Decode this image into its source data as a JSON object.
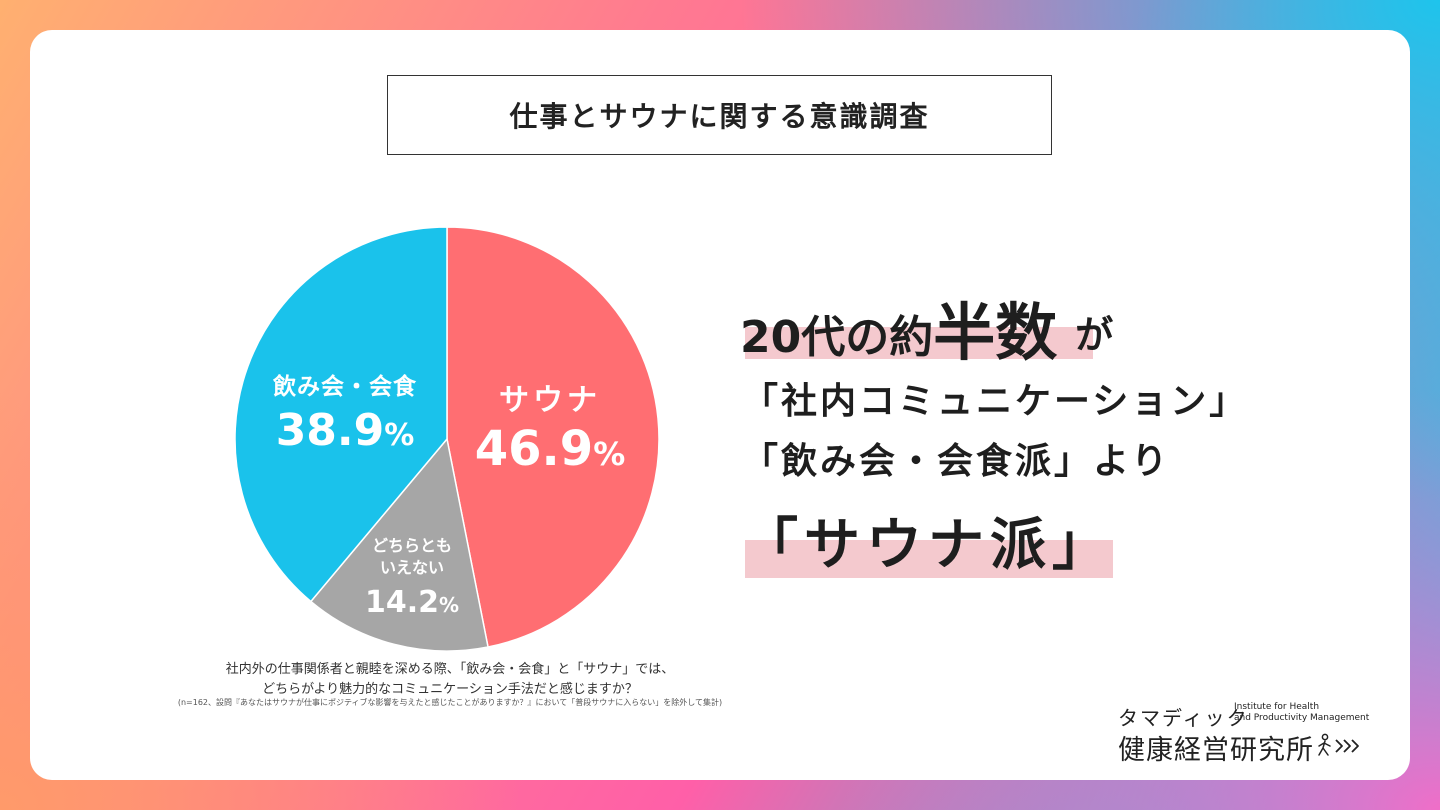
{
  "title": "仕事とサウナに関する意識調査",
  "chart_data": {
    "type": "pie",
    "slices": [
      {
        "label": "サウナ",
        "value": 46.9,
        "color": "#ff6e72"
      },
      {
        "label": "どちらとも\nいえない",
        "value": 14.2,
        "color": "#a6a6a6"
      },
      {
        "label": "飲み会・会食",
        "value": 38.9,
        "color": "#1ac2eb"
      }
    ],
    "start": "12 o'clock",
    "direction": "clockwise",
    "unit": "%"
  },
  "labels": {
    "sauna_name": "サウナ",
    "sauna_pct": "46.9",
    "other_name_1": "どちらとも",
    "other_name_2": "いえない",
    "other_pct": "14.2",
    "nomikai_name": "飲み会・会食",
    "nomikai_pct": "38.9",
    "pct_sign": "%"
  },
  "caption": {
    "question_line1": "社内外の仕事関係者と親睦を深める際、「飲み会・会食」と「サウナ」では、",
    "question_line2": "どちらがより魅力的なコミュニケーション手法だと感じますか？",
    "note": "(n=162、設問『あなたはサウナが仕事にポジティブな影響を与えたと感じたことがありますか？』において「普段サウナに入らない」を除外して集計)"
  },
  "headline": {
    "l1_a": "20代の約",
    "l1_b": "半数",
    "l1_c": "が",
    "l2": "「社内コミュニケーション」",
    "l3": "「飲み会・会食派」より",
    "l4": "「サウナ派」"
  },
  "logo": {
    "kana": "タマディック",
    "en_line1": "Institute for Health",
    "en_line2": "and Productivity Management",
    "jp": "健康経営研究所"
  },
  "colors": {
    "highlight": "#f4c9ce",
    "sauna": "#ff6e72",
    "neutral": "#a6a6a6",
    "nomikai": "#1ac2eb"
  }
}
